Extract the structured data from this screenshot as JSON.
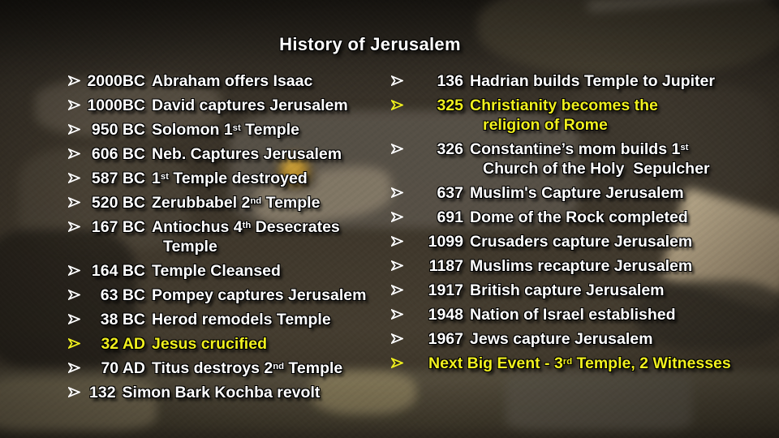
{
  "slide": {
    "title": "History of Jerusalem",
    "colors": {
      "text_primary": "#ffffff",
      "text_highlight": "#f0f01e"
    },
    "background_subject": "aerial-photo-of-jerusalem-old-city",
    "left_column": {
      "items": [
        {
          "year": "2000BC",
          "text": "Abraham offers Isaac",
          "highlight": false
        },
        {
          "year": "1000BC",
          "text": "David captures Jerusalem",
          "highlight": false
        },
        {
          "year": "950 BC",
          "text": "Solomon 1^{st} Temple",
          "highlight": false
        },
        {
          "year": "606 BC",
          "text": "Neb. Captures Jerusalem",
          "highlight": false
        },
        {
          "year": "587 BC",
          "text": "1^{st} Temple destroyed",
          "highlight": false
        },
        {
          "year": "520 BC",
          "text": "Zerubbabel 2^{nd} Temple",
          "highlight": false
        },
        {
          "year": "167 BC",
          "text": "Antiochus 4^{th} Desecrates\nTemple",
          "highlight": false
        },
        {
          "year": "164 BC",
          "text": "Temple Cleansed",
          "highlight": false
        },
        {
          "year": "63 BC",
          "text": "Pompey captures Jerusalem",
          "highlight": false
        },
        {
          "year": "38 BC",
          "text": "Herod remodels Temple",
          "highlight": false
        },
        {
          "year": "32 AD",
          "text": "Jesus crucified",
          "highlight": true
        },
        {
          "year": "70 AD",
          "text": "Titus destroys 2^{nd} Temple",
          "highlight": false
        },
        {
          "year": "132",
          "text": "Simon Bark Kochba revolt",
          "highlight": false,
          "inline": true
        }
      ]
    },
    "right_column": {
      "items": [
        {
          "year": "136",
          "text": "Hadrian builds Temple to Jupiter",
          "highlight": false
        },
        {
          "year": "325",
          "text": "Christianity becomes the\nreligion of Rome",
          "highlight": true
        },
        {
          "year": "326",
          "text": "Constantine’s mom builds 1^{st}\nChurch of the Holy  Sepulcher",
          "highlight": false
        },
        {
          "year": "637",
          "text": "Muslim's Capture Jerusalem",
          "highlight": false
        },
        {
          "year": "691",
          "text": "Dome of the Rock completed",
          "highlight": false
        },
        {
          "year": "1099",
          "text": "Crusaders capture Jerusalem",
          "highlight": false
        },
        {
          "year": "1187",
          "text": "Muslims recapture Jerusalem",
          "highlight": false
        },
        {
          "year": "1917",
          "text": "British capture Jerusalem",
          "highlight": false
        },
        {
          "year": "1948",
          "text": "Nation of Israel established",
          "highlight": false
        },
        {
          "year": "1967",
          "text": "Jews capture Jerusalem",
          "highlight": false
        },
        {
          "year": null,
          "text": "Next Big Event - 3^{rd} Temple, 2 Witnesses",
          "highlight": true
        }
      ]
    }
  }
}
